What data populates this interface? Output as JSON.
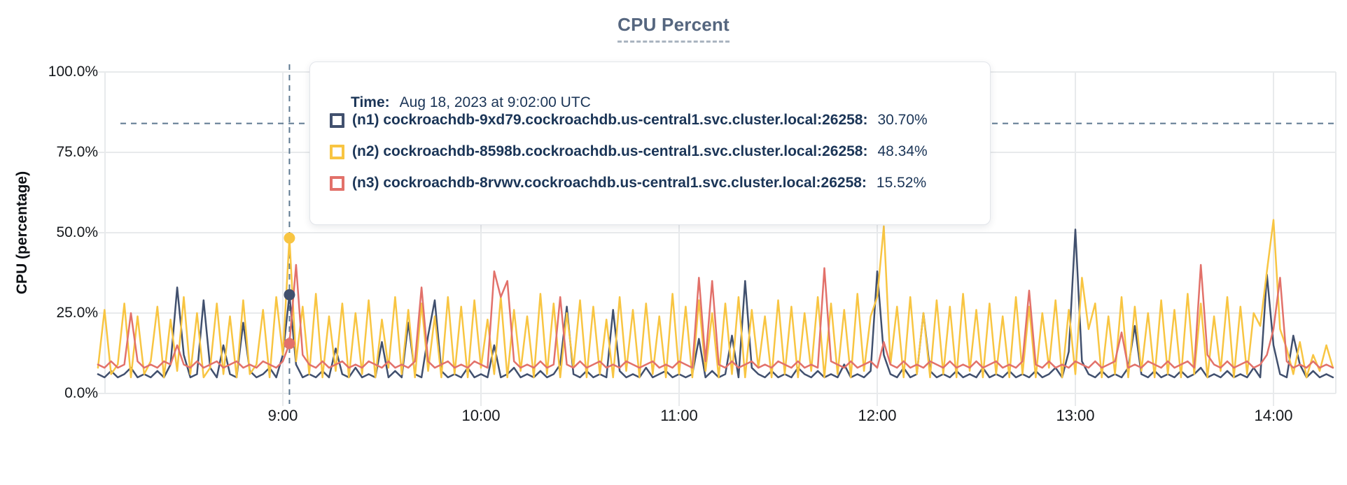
{
  "title": "CPU Percent",
  "colors": {
    "n1": "#41506e",
    "n2": "#f8c542",
    "n3": "#e2716a",
    "guide_dash": "#5d7890",
    "grid": "#e8eaec",
    "tooltip_text": "#1b3557",
    "title_text": "#55667f"
  },
  "y_axis": {
    "title": "CPU (percentage)",
    "ticks": [
      "100.0%",
      "75.0%",
      "50.0%",
      "25.0%",
      "0.0%"
    ]
  },
  "x_axis": {
    "tick_labels": [
      "9:00",
      "10:00",
      "11:00",
      "12:00",
      "13:00",
      "14:00"
    ]
  },
  "tooltip": {
    "time_label": "Time:",
    "time_value": "Aug 18, 2023 at 9:02:00 UTC",
    "series": [
      {
        "label": "(n1) cockroachdb-9xd79.cockroachdb.us-central1.svc.cluster.local:26258:",
        "value": "30.70%"
      },
      {
        "label": "(n2) cockroachdb-8598b.cockroachdb.us-central1.svc.cluster.local:26258:",
        "value": "48.34%"
      },
      {
        "label": "(n3) cockroachdb-8rvwv.cockroachdb.us-central1.svc.cluster.local:26258:",
        "value": "15.52%"
      }
    ]
  },
  "chart_data": {
    "type": "line",
    "title": "CPU Percent",
    "xlabel": "",
    "ylabel": "CPU (percentage)",
    "ylim": [
      0,
      100
    ],
    "grid": true,
    "x_start_min": 484,
    "x_step_min": 2,
    "x_tick_minutes": [
      540,
      600,
      660,
      720,
      780,
      840
    ],
    "x_tick_labels": [
      "9:00",
      "10:00",
      "11:00",
      "12:00",
      "13:00",
      "14:00"
    ],
    "threshold_pct": 84,
    "highlight": {
      "time_min": 542,
      "time_text": "Aug 18, 2023 at 9:02:00 UTC",
      "values": [
        30.7,
        48.34,
        15.52
      ]
    },
    "series": [
      {
        "name": "(n1) cockroachdb-9xd79.cockroachdb.us-central1.svc.cluster.local:26258",
        "color": "#41506e",
        "highlight_value": 30.7,
        "values": [
          6,
          5,
          7,
          5,
          6,
          8,
          5,
          6,
          5,
          7,
          5,
          9,
          33,
          12,
          5,
          6,
          29,
          8,
          5,
          15,
          6,
          5,
          22,
          7,
          5,
          6,
          8,
          5,
          12,
          30.7,
          9,
          5,
          6,
          5,
          7,
          5,
          14,
          6,
          5,
          8,
          5,
          6,
          5,
          16,
          5,
          7,
          5,
          22,
          6,
          5,
          18,
          29,
          7,
          5,
          6,
          5,
          8,
          5,
          6,
          5,
          15,
          5,
          6,
          8,
          5,
          6,
          5,
          7,
          5,
          6,
          9,
          27,
          6,
          5,
          7,
          5,
          6,
          5,
          26,
          7,
          5,
          6,
          5,
          8,
          5,
          6,
          7,
          5,
          6,
          5,
          6,
          17,
          5,
          7,
          5,
          6,
          18,
          5,
          35,
          8,
          6,
          5,
          7,
          5,
          6,
          5,
          8,
          6,
          5,
          7,
          5,
          6,
          5,
          9,
          5,
          6,
          5,
          7,
          38,
          12,
          6,
          5,
          8,
          5,
          6,
          25,
          7,
          5,
          6,
          5,
          7,
          5,
          6,
          5,
          8,
          5,
          6,
          5,
          7,
          5,
          6,
          5,
          7,
          5,
          6,
          8,
          5,
          13,
          51,
          10,
          6,
          5,
          7,
          5,
          6,
          5,
          8,
          21,
          6,
          5,
          7,
          5,
          6,
          5,
          7,
          5,
          6,
          8,
          5,
          6,
          5,
          7,
          5,
          6,
          5,
          8,
          5,
          37,
          15,
          6,
          5,
          18,
          9,
          5,
          7,
          5,
          6,
          5
        ]
      },
      {
        "name": "(n2) cockroachdb-8598b.cockroachdb.us-central1.svc.cluster.local:26258",
        "color": "#f8c542",
        "highlight_value": 48.34,
        "values": [
          8,
          26,
          6,
          9,
          28,
          5,
          24,
          6,
          10,
          27,
          5,
          23,
          7,
          30,
          6,
          25,
          5,
          8,
          28,
          6,
          24,
          5,
          29,
          6,
          9,
          26,
          5,
          30,
          12,
          48.34,
          10,
          27,
          6,
          31,
          5,
          24,
          7,
          28,
          5,
          25,
          6,
          29,
          5,
          23,
          8,
          30,
          6,
          26,
          5,
          28,
          7,
          24,
          5,
          30,
          6,
          27,
          5,
          29,
          8,
          23,
          6,
          30,
          5,
          26,
          7,
          24,
          5,
          31,
          6,
          28,
          5,
          25,
          8,
          29,
          5,
          27,
          6,
          23,
          5,
          30,
          7,
          26,
          5,
          28,
          6,
          24,
          5,
          31,
          6,
          27,
          5,
          29,
          7,
          25,
          5,
          28,
          6,
          30,
          5,
          26,
          8,
          24,
          5,
          29,
          6,
          27,
          5,
          25,
          7,
          30,
          5,
          28,
          6,
          26,
          5,
          31,
          7,
          24,
          30,
          52,
          9,
          27,
          5,
          30,
          6,
          25,
          5,
          29,
          6,
          27,
          5,
          31,
          7,
          26,
          5,
          28,
          6,
          24,
          5,
          30,
          6,
          27,
          5,
          25,
          8,
          29,
          5,
          26,
          6,
          36,
          20,
          28,
          5,
          24,
          6,
          30,
          5,
          27,
          7,
          25,
          5,
          29,
          6,
          26,
          5,
          31,
          6,
          28,
          5,
          24,
          7,
          30,
          5,
          27,
          6,
          25,
          21,
          38,
          54,
          20,
          14,
          6,
          16,
          5,
          12,
          7,
          15,
          8
        ]
      },
      {
        "name": "(n3) cockroachdb-8rvwv.cockroachdb.us-central1.svc.cluster.local:26258",
        "color": "#e2716a",
        "highlight_value": 15.52,
        "values": [
          9,
          8,
          10,
          8,
          9,
          25,
          10,
          8,
          9,
          8,
          10,
          9,
          15,
          9,
          8,
          10,
          8,
          9,
          10,
          8,
          9,
          10,
          8,
          9,
          8,
          10,
          9,
          8,
          10,
          15.52,
          40,
          12,
          9,
          8,
          10,
          8,
          9,
          10,
          8,
          9,
          8,
          10,
          9,
          8,
          10,
          8,
          9,
          8,
          10,
          33,
          10,
          8,
          9,
          10,
          8,
          9,
          8,
          10,
          9,
          8,
          38,
          30,
          35,
          10,
          8,
          9,
          8,
          10,
          8,
          9,
          30,
          9,
          8,
          10,
          8,
          9,
          10,
          8,
          9,
          8,
          10,
          9,
          8,
          9,
          10,
          8,
          9,
          8,
          10,
          9,
          8,
          36,
          10,
          35,
          9,
          8,
          10,
          8,
          9,
          10,
          8,
          9,
          8,
          10,
          9,
          8,
          10,
          8,
          9,
          8,
          39,
          10,
          9,
          8,
          10,
          8,
          9,
          10,
          8,
          16,
          9,
          8,
          10,
          8,
          9,
          8,
          10,
          9,
          8,
          10,
          8,
          9,
          8,
          10,
          8,
          9,
          10,
          8,
          9,
          8,
          10,
          32,
          9,
          8,
          10,
          8,
          9,
          8,
          10,
          9,
          8,
          10,
          8,
          9,
          10,
          19,
          8,
          9,
          8,
          10,
          9,
          8,
          10,
          8,
          9,
          10,
          8,
          40,
          12,
          9,
          8,
          10,
          8,
          9,
          10,
          8,
          9,
          12,
          20,
          36,
          10,
          8,
          9,
          8,
          10,
          8,
          9,
          8
        ]
      }
    ]
  }
}
